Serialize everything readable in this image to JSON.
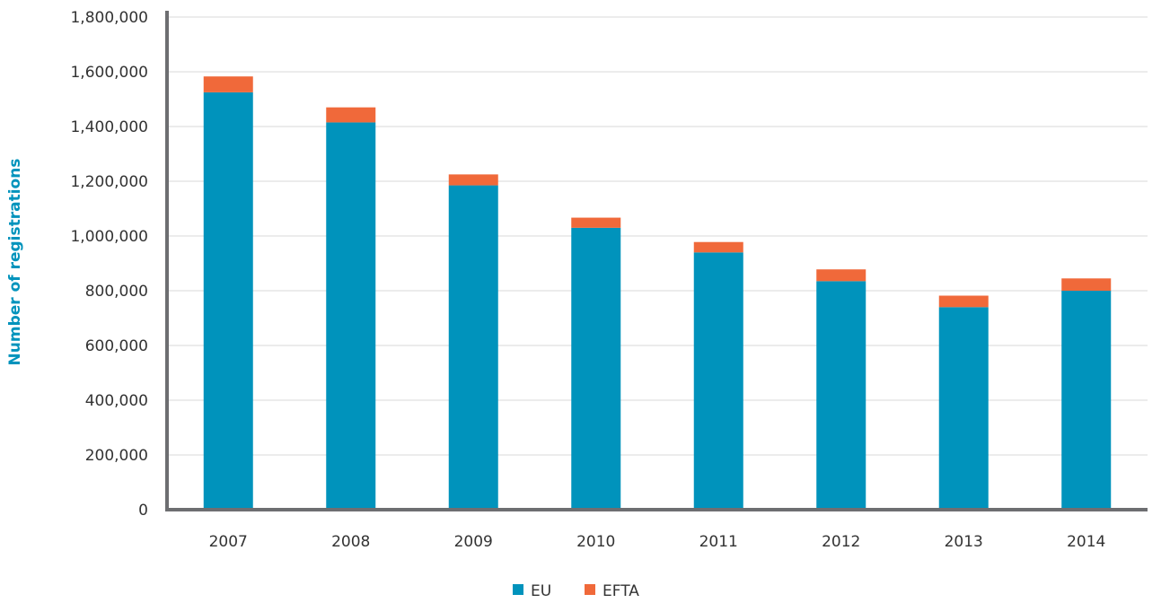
{
  "chart_data": {
    "type": "bar",
    "stacked": true,
    "categories": [
      "2007",
      "2008",
      "2009",
      "2010",
      "2011",
      "2012",
      "2013",
      "2014"
    ],
    "series": [
      {
        "name": "EU",
        "color": "#0093BC",
        "values": [
          1525000,
          1415000,
          1185000,
          1030000,
          940000,
          835000,
          740000,
          800000
        ]
      },
      {
        "name": "EFTA",
        "color": "#F0693A",
        "values": [
          58000,
          55000,
          40000,
          37000,
          38000,
          43000,
          42000,
          45000
        ]
      }
    ],
    "title": "",
    "xlabel": "",
    "ylabel": "Number of registrations",
    "ylim": [
      0,
      1800000
    ],
    "yticks": [
      0,
      200000,
      400000,
      600000,
      800000,
      1000000,
      1200000,
      1400000,
      1600000,
      1800000
    ],
    "ytick_labels": [
      "0",
      "200,000",
      "400,000",
      "600,000",
      "800,000",
      "1,000,000",
      "1,200,000",
      "1,400,000",
      "1,600,000",
      "1,800,000"
    ],
    "grid": true,
    "legend": {
      "position": "bottom-center"
    },
    "colors": {
      "axis": "#6D6E71",
      "grid": "#D9D9D9",
      "ylabel": "#0093BC"
    }
  }
}
